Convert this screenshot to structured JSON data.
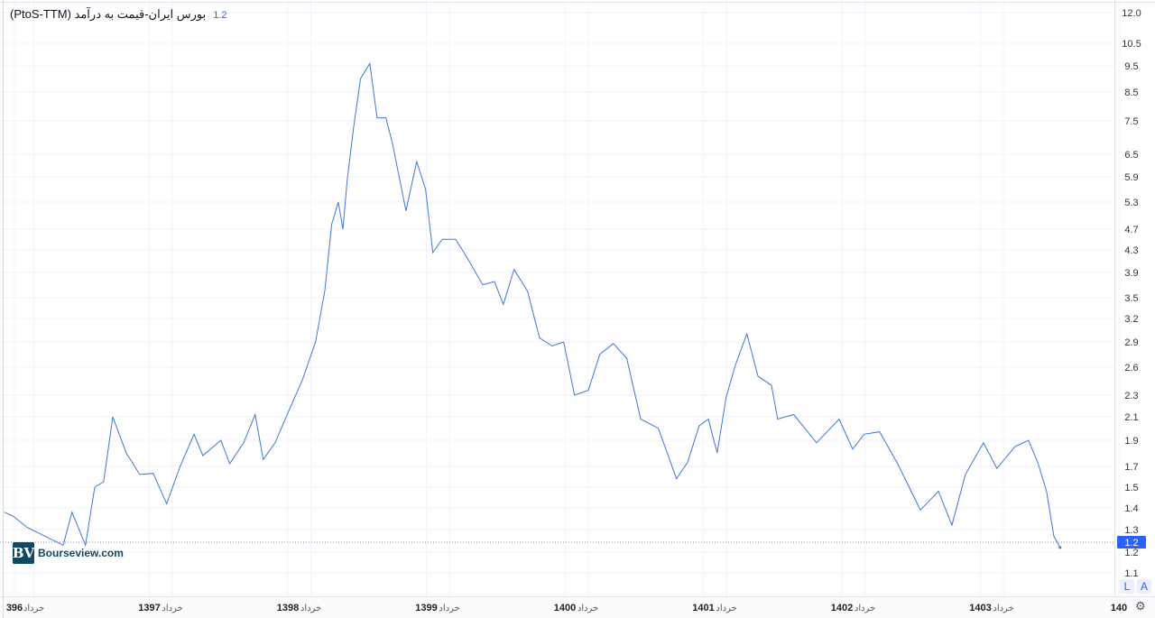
{
  "header": {
    "title": "بورس ایران-قیمت به درآمد (PtoS-TTM)",
    "current_value": "1.2"
  },
  "logo": {
    "text": "Bourseview.com",
    "mark": "BV"
  },
  "scale_buttons": {
    "log": "L",
    "auto": "A"
  },
  "settings_icon": "gear-icon",
  "colors": {
    "line": "#3f76dc",
    "accent": "#2962ff",
    "grid": "#f0f3fa"
  },
  "chart_data": {
    "type": "line",
    "title": "بورس ایران-قیمت به درآمد (PtoS-TTM)",
    "y_scale": "log",
    "ylim": [
      1.1,
      12.0
    ],
    "grid": true,
    "last_value": "1.2",
    "y_ticks": [
      "12.0",
      "10.5",
      "9.5",
      "8.5",
      "7.5",
      "6.5",
      "5.9",
      "5.3",
      "4.7",
      "4.3",
      "3.9",
      "3.5",
      "3.2",
      "2.9",
      "2.6",
      "2.3",
      "2.1",
      "1.9",
      "1.7",
      "1.5",
      "1.4",
      "1.3",
      "1.2",
      "1.1"
    ],
    "x_ticks": [
      {
        "label": "396",
        "date": "1396/01/01",
        "major": true
      },
      {
        "label": "خرداد",
        "date": "1396/03/01",
        "major": false
      },
      {
        "label": "1397",
        "date": "1397/01/01",
        "major": true
      },
      {
        "label": "خرداد",
        "date": "1397/03/01",
        "major": false
      },
      {
        "label": "1398",
        "date": "1398/01/01",
        "major": true
      },
      {
        "label": "خرداد",
        "date": "1398/03/01",
        "major": false
      },
      {
        "label": "1399",
        "date": "1399/01/01",
        "major": true
      },
      {
        "label": "خرداد",
        "date": "1399/03/01",
        "major": false
      },
      {
        "label": "1400",
        "date": "1400/01/01",
        "major": true
      },
      {
        "label": "خرداد",
        "date": "1400/03/01",
        "major": false
      },
      {
        "label": "1401",
        "date": "1401/01/01",
        "major": true
      },
      {
        "label": "خرداد",
        "date": "1401/03/01",
        "major": false
      },
      {
        "label": "1402",
        "date": "1402/01/01",
        "major": true
      },
      {
        "label": "خرداد",
        "date": "1402/03/01",
        "major": false
      },
      {
        "label": "1403",
        "date": "1403/01/01",
        "major": true
      },
      {
        "label": "خرداد",
        "date": "1403/03/01",
        "major": false
      },
      {
        "label": "140",
        "date": "1404/01/01",
        "major": true
      }
    ],
    "series": [
      {
        "points": [
          [
            "1395/12/14",
            1.38
          ],
          [
            "1396/01/08",
            1.36
          ],
          [
            "1396/02/13",
            1.31
          ],
          [
            "1396/03/30",
            1.27
          ],
          [
            "1396/05/17",
            1.23
          ],
          [
            "1396/06/10",
            1.38
          ],
          [
            "1396/07/15",
            1.23
          ],
          [
            "1396/08/09",
            1.5
          ],
          [
            "1396/09/02",
            1.55
          ],
          [
            "1396/09/26",
            2.1
          ],
          [
            "1396/11/01",
            1.8
          ],
          [
            "1396/12/06",
            1.62
          ],
          [
            "1397/01/11",
            1.63
          ],
          [
            "1397/02/16",
            1.42
          ],
          [
            "1397/03/21",
            1.7
          ],
          [
            "1397/04/27",
            1.95
          ],
          [
            "1397/05/20",
            1.78
          ],
          [
            "1397/07/07",
            1.9
          ],
          [
            "1397/07/30",
            1.72
          ],
          [
            "1397/09/06",
            1.88
          ],
          [
            "1397/10/06",
            2.12
          ],
          [
            "1397/10/27",
            1.75
          ],
          [
            "1397/11/28",
            1.88
          ],
          [
            "1398/01/03",
            2.15
          ],
          [
            "1398/02/08",
            2.45
          ],
          [
            "1398/03/13",
            2.9
          ],
          [
            "1398/04/07",
            3.6
          ],
          [
            "1398/04/25",
            4.8
          ],
          [
            "1398/05/12",
            5.3
          ],
          [
            "1398/05/24",
            4.7
          ],
          [
            "1398/06/05",
            5.8
          ],
          [
            "1398/06/22",
            7.3
          ],
          [
            "1398/07/10",
            9.0
          ],
          [
            "1398/08/04",
            9.6
          ],
          [
            "1398/08/23",
            7.6
          ],
          [
            "1398/09/16",
            7.6
          ],
          [
            "1398/10/03",
            6.8
          ],
          [
            "1398/11/08",
            5.1
          ],
          [
            "1398/12/06",
            6.3
          ],
          [
            "1398/12/29",
            5.6
          ],
          [
            "1399/01/18",
            4.25
          ],
          [
            "1399/02/12",
            4.5
          ],
          [
            "1399/03/17",
            4.5
          ],
          [
            "1399/04/22",
            4.1
          ],
          [
            "1399/05/27",
            3.7
          ],
          [
            "1399/06/28",
            3.75
          ],
          [
            "1399/07/21",
            3.4
          ],
          [
            "1399/08/19",
            3.95
          ],
          [
            "1399/09/24",
            3.6
          ],
          [
            "1399/10/25",
            2.95
          ],
          [
            "1399/11/28",
            2.85
          ],
          [
            "1399/12/28",
            2.9
          ],
          [
            "1400/01/26",
            2.3
          ],
          [
            "1400/03/02",
            2.35
          ],
          [
            "1400/04/02",
            2.75
          ],
          [
            "1400/05/07",
            2.88
          ],
          [
            "1400/06/12",
            2.7
          ],
          [
            "1400/07/18",
            2.08
          ],
          [
            "1400/09/04",
            2.0
          ],
          [
            "1400/10/21",
            1.58
          ],
          [
            "1400/11/20",
            1.73
          ],
          [
            "1400/12/20",
            2.02
          ],
          [
            "1401/01/14",
            2.08
          ],
          [
            "1401/02/07",
            1.8
          ],
          [
            "1401/02/30",
            2.28
          ],
          [
            "1401/03/24",
            2.62
          ],
          [
            "1401/04/24",
            3.0
          ],
          [
            "1401/05/23",
            2.5
          ],
          [
            "1401/06/28",
            2.4
          ],
          [
            "1401/07/14",
            2.08
          ],
          [
            "1401/08/26",
            2.12
          ],
          [
            "1401/10/25",
            1.88
          ],
          [
            "1401/12/24",
            2.08
          ],
          [
            "1402/01/29",
            1.83
          ],
          [
            "1402/02/29",
            1.95
          ],
          [
            "1402/04/09",
            1.97
          ],
          [
            "1402/05/26",
            1.72
          ],
          [
            "1402/07/25",
            1.39
          ],
          [
            "1402/09/12",
            1.48
          ],
          [
            "1402/10/17",
            1.32
          ],
          [
            "1402/11/22",
            1.62
          ],
          [
            "1403/01/09",
            1.88
          ],
          [
            "1403/02/14",
            1.68
          ],
          [
            "1403/04/01",
            1.85
          ],
          [
            "1403/05/06",
            1.9
          ],
          [
            "1403/05/30",
            1.73
          ],
          [
            "1403/06/23",
            1.48
          ],
          [
            "1403/07/12",
            1.27
          ],
          [
            "1403/07/28",
            1.22
          ]
        ]
      }
    ]
  }
}
